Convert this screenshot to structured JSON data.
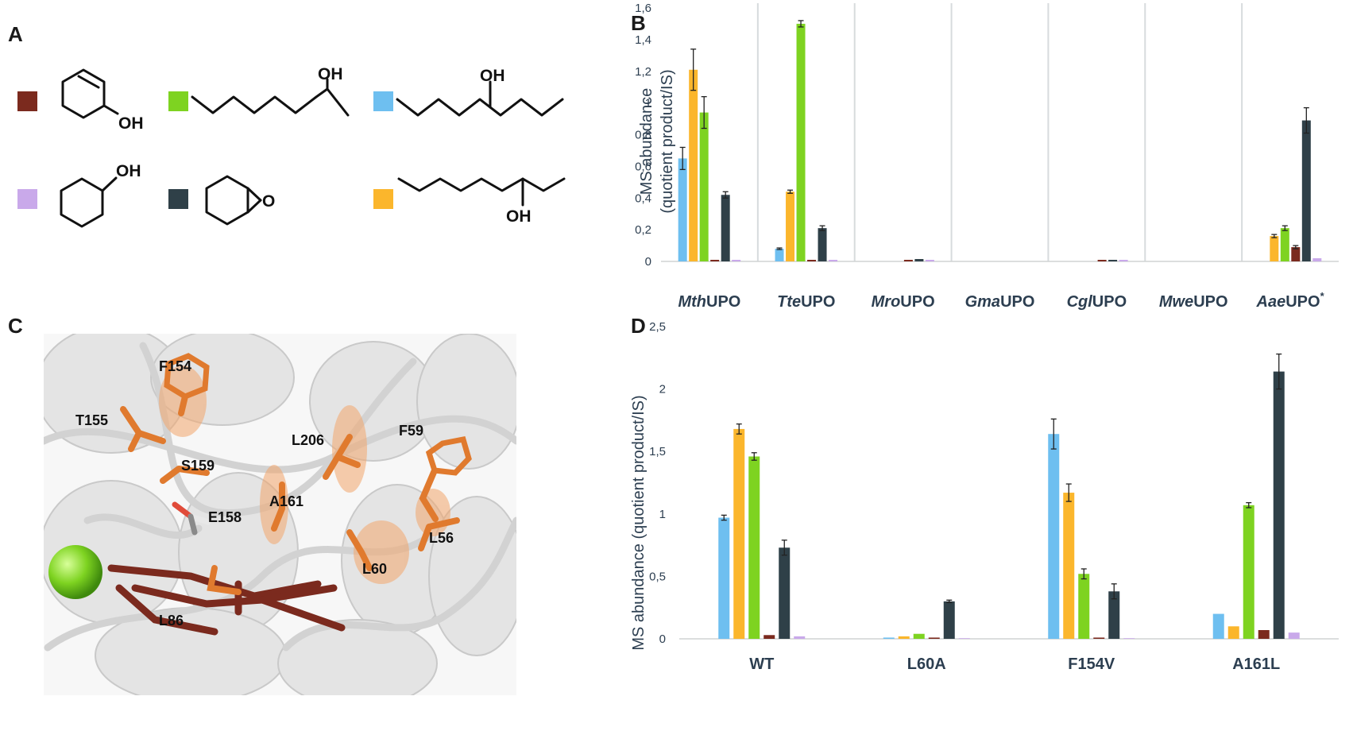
{
  "panel_labels": {
    "a": "A",
    "b": "B",
    "c": "C",
    "d": "D"
  },
  "legend": {
    "items": [
      {
        "key": "brown",
        "color": "#7b2a1e",
        "group": "cyclohexenol",
        "text": "OH"
      },
      {
        "key": "green",
        "color": "#7ed321",
        "group": "octanol",
        "text": "OH"
      },
      {
        "key": "blue",
        "color": "#6ebff0",
        "group": "heptanol",
        "text": "OH"
      },
      {
        "key": "purple",
        "color": "#c9a9ea",
        "group": "cyclohexanol",
        "text": "OH"
      },
      {
        "key": "dark",
        "color": "#2f4048",
        "group": "epoxide",
        "text": "O"
      },
      {
        "key": "orange",
        "color": "#fbb62c",
        "group": "octan3ol",
        "text": "OH"
      }
    ]
  },
  "structure_labels": {
    "residues": [
      "F154",
      "T155",
      "L206",
      "F59",
      "S159",
      "A161",
      "E158",
      "L56",
      "L60",
      "L86"
    ]
  },
  "chart_data": [
    {
      "type": "bar",
      "panel": "B",
      "ylabel": [
        "MS abundance",
        "(quotient product/IS)"
      ],
      "ylim": [
        0,
        1.6
      ],
      "yticks": [
        "0",
        "0,2",
        "0,4",
        "0,6",
        "0,8",
        "1",
        "1,2",
        "1,4",
        "1,6"
      ],
      "grid": false,
      "categories": [
        {
          "italic": "Mth",
          "plain": "UPO",
          "sup": ""
        },
        {
          "italic": "Tte",
          "plain": "UPO",
          "sup": ""
        },
        {
          "italic": "Mro",
          "plain": "UPO",
          "sup": ""
        },
        {
          "italic": "Gma",
          "plain": "UPO",
          "sup": ""
        },
        {
          "italic": "Cgl",
          "plain": "UPO",
          "sup": ""
        },
        {
          "italic": "Mwe",
          "plain": "UPO",
          "sup": ""
        },
        {
          "italic": "Aae",
          "plain": "UPO",
          "sup": "*"
        }
      ],
      "series": [
        {
          "color": "#6ebff0",
          "values": [
            0.65,
            0.08,
            0,
            0,
            0,
            0,
            0
          ],
          "errors": [
            0.07,
            0.005,
            0,
            0,
            0,
            0,
            0
          ]
        },
        {
          "color": "#fbb62c",
          "values": [
            1.21,
            0.44,
            0,
            0,
            0,
            0,
            0.16
          ],
          "errors": [
            0.13,
            0.01,
            0,
            0,
            0,
            0,
            0.01
          ]
        },
        {
          "color": "#7ed321",
          "values": [
            0.94,
            1.5,
            0,
            0,
            0,
            0,
            0.21
          ],
          "errors": [
            0.1,
            0.02,
            0,
            0,
            0,
            0,
            0.015
          ]
        },
        {
          "color": "#7b2a1e",
          "values": [
            0.01,
            0.01,
            0.01,
            0,
            0.01,
            0,
            0.09
          ],
          "errors": [
            0,
            0,
            0,
            0,
            0,
            0,
            0.01
          ]
        },
        {
          "color": "#2f4048",
          "values": [
            0.42,
            0.21,
            0.015,
            0,
            0.01,
            0,
            0.89
          ],
          "errors": [
            0.02,
            0.015,
            0,
            0,
            0,
            0,
            0.08
          ]
        },
        {
          "color": "#c9a9ea",
          "values": [
            0.01,
            0.01,
            0.01,
            0,
            0.01,
            0,
            0.02
          ],
          "errors": [
            0,
            0,
            0,
            0,
            0,
            0,
            0
          ]
        }
      ]
    },
    {
      "type": "bar",
      "panel": "D",
      "ylabel": [
        "MS abundance (quotient product/IS)"
      ],
      "ylim": [
        0,
        2.5
      ],
      "yticks": [
        "0",
        "0,5",
        "1",
        "1,5",
        "2",
        "2,5"
      ],
      "grid": false,
      "categories": [
        {
          "italic": "",
          "plain": "WT",
          "sup": ""
        },
        {
          "italic": "",
          "plain": "L60A",
          "sup": ""
        },
        {
          "italic": "",
          "plain": "F154V",
          "sup": ""
        },
        {
          "italic": "",
          "plain": "A161L",
          "sup": ""
        }
      ],
      "series": [
        {
          "color": "#6ebff0",
          "values": [
            0.97,
            0.01,
            1.64,
            0.2
          ],
          "errors": [
            0.02,
            0,
            0.12,
            0
          ]
        },
        {
          "color": "#fbb62c",
          "values": [
            1.68,
            0.02,
            1.17,
            0.1
          ],
          "errors": [
            0.04,
            0,
            0.07,
            0
          ]
        },
        {
          "color": "#7ed321",
          "values": [
            1.46,
            0.04,
            0.52,
            1.07
          ],
          "errors": [
            0.03,
            0,
            0.04,
            0.02
          ]
        },
        {
          "color": "#7b2a1e",
          "values": [
            0.03,
            0.01,
            0.01,
            0.07
          ],
          "errors": [
            0,
            0,
            0,
            0
          ]
        },
        {
          "color": "#2f4048",
          "values": [
            0.73,
            0.3,
            0.38,
            2.14
          ],
          "errors": [
            0.06,
            0.01,
            0.06,
            0.14
          ]
        },
        {
          "color": "#c9a9ea",
          "values": [
            0.02,
            0.005,
            0.005,
            0.05
          ],
          "errors": [
            0,
            0,
            0,
            0
          ]
        }
      ]
    }
  ]
}
